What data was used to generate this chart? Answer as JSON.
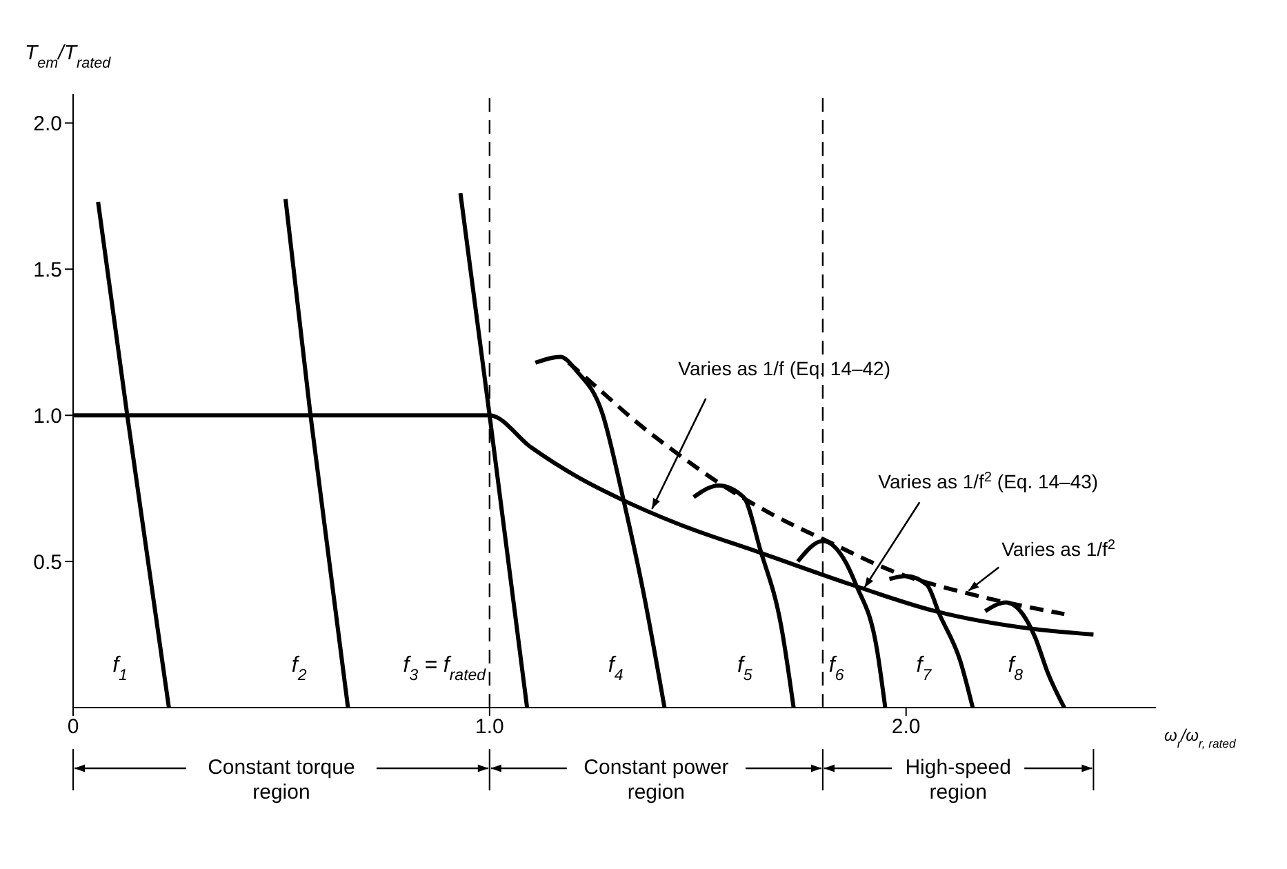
{
  "chart_data": {
    "type": "line",
    "xlabel": "ω$_{r}$/ω$_{r, rated}$",
    "ylabel": "T$_{em}$/T$_{rated}$",
    "xlim": [
      0,
      2.6
    ],
    "ylim": [
      0,
      2.1
    ],
    "xticks": [
      {
        "value": 0,
        "label": "0"
      },
      {
        "value": 1,
        "label": "1.0"
      },
      {
        "value": 2,
        "label": "2.0"
      }
    ],
    "yticks": [
      {
        "value": 0.5,
        "label": "0.5"
      },
      {
        "value": 1,
        "label": "1.0"
      },
      {
        "value": 1.5,
        "label": "1.5"
      },
      {
        "value": 2,
        "label": "2.0"
      }
    ],
    "series": [
      {
        "color": "#000000",
        "x": [
          0,
          1.0,
          1.1,
          1.21,
          1.32,
          1.45,
          1.65,
          1.87,
          2.07,
          2.3,
          2.45
        ],
        "values": [
          1,
          1,
          0.89,
          0.79,
          0.71,
          0.63,
          0.53,
          0.42,
          0.33,
          0.27,
          0.25
        ]
      },
      {
        "name": "f$_{1}$",
        "color": "#000000",
        "x": [
          0.06,
          0.13,
          0.23
        ],
        "values": [
          1.73,
          1.0,
          0
        ]
      },
      {
        "name": "f$_{2}$",
        "color": "#000000",
        "x": [
          0.51,
          0.57,
          0.66
        ],
        "values": [
          1.74,
          1.0,
          0
        ]
      },
      {
        "name": "f$_{3}$ = f$_{rated}$",
        "color": "#000000",
        "x": [
          0.93,
          1.0,
          1.09
        ],
        "values": [
          1.76,
          1.0,
          0
        ]
      },
      {
        "name": "f$_{4}$",
        "color": "#000000",
        "x": [
          1.11,
          1.17,
          1.21,
          1.27,
          1.32,
          1.37,
          1.42
        ],
        "values": [
          1.18,
          1.2,
          1.15,
          1.01,
          0.72,
          0.39,
          0
        ]
      },
      {
        "name": "f$_{5}$",
        "color": "#000000",
        "x": [
          1.49,
          1.55,
          1.61,
          1.65,
          1.7,
          1.73
        ],
        "values": [
          0.72,
          0.76,
          0.72,
          0.54,
          0.28,
          0
        ]
      },
      {
        "name": "f$_{6}$",
        "color": "#000000",
        "x": [
          1.74,
          1.8,
          1.85,
          1.88,
          1.93,
          1.95
        ],
        "values": [
          0.5,
          0.57,
          0.51,
          0.42,
          0.2,
          0
        ]
      },
      {
        "name": "f$_{7}$",
        "color": "#000000",
        "x": [
          1.96,
          2.0,
          2.05,
          2.08,
          2.13,
          2.16
        ],
        "values": [
          0.44,
          0.45,
          0.42,
          0.32,
          0.16,
          0
        ]
      },
      {
        "name": "f$_{8}$",
        "color": "#000000",
        "x": [
          2.19,
          2.24,
          2.28,
          2.31,
          2.34,
          2.38
        ],
        "values": [
          0.33,
          0.36,
          0.32,
          0.24,
          0.12,
          0
        ]
      },
      {
        "color": "#000000",
        "line_style": "dashed",
        "x": [
          1.19,
          1.27,
          1.35,
          1.45,
          1.56,
          1.68,
          1.81,
          1.98,
          2.15,
          2.38
        ],
        "values": [
          1.18,
          1.08,
          0.98,
          0.87,
          0.76,
          0.66,
          0.57,
          0.46,
          0.39,
          0.32
        ]
      }
    ],
    "ref_lines": [
      {
        "axis": "x",
        "value": 1.0,
        "line_style": "dashed",
        "color": "#000000"
      },
      {
        "axis": "x",
        "value": 1.8,
        "line_style": "dashed",
        "color": "#000000"
      }
    ],
    "annotations": [
      "Constant torque region",
      "Constant power region",
      "High-speed region",
      {
        "text": "Varies as 1/f (Eq. 14–42)",
        "x": 1.39,
        "y": 0.68
      },
      {
        "text": "Varies as 1/f$^{2}$ (Eq. 14–43)",
        "x": 1.9,
        "y": 0.41
      },
      {
        "text": "Varies as 1/f$^{2}$",
        "x": 2.15,
        "y": 0.4
      }
    ]
  }
}
